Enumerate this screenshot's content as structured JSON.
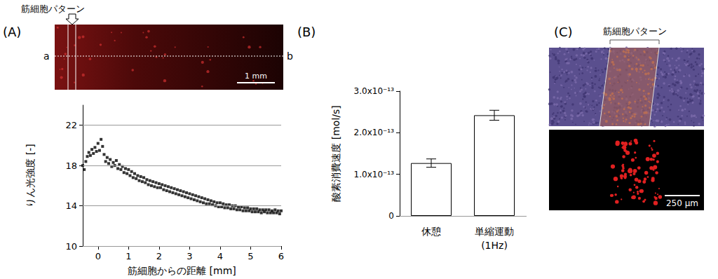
{
  "panel_labels": [
    "(A)",
    "(B)",
    "(C)"
  ],
  "panel_a_image": {
    "pattern_label": "筋細胞パターン",
    "line_start": "a",
    "line_end": "b",
    "scale_bar": "1 mm"
  },
  "panel_c_image": {
    "pattern_label": "筋細胞パターン",
    "scale_bar": "250 µm"
  },
  "chart_data": [
    {
      "type": "scatter",
      "x_label": "筋細胞からの距離 [mm]",
      "y_label": "りん光強度 [-]",
      "x": [
        -0.5,
        -0.45,
        -0.4,
        -0.35,
        -0.3,
        -0.25,
        -0.2,
        -0.15,
        -0.1,
        -0.05,
        0,
        0.05,
        0.1,
        0.15,
        0.2,
        0.25,
        0.3,
        0.35,
        0.4,
        0.45,
        0.5,
        0.55,
        0.6,
        0.65,
        0.7,
        0.75,
        0.8,
        0.85,
        0.9,
        0.95,
        1,
        1.05,
        1.1,
        1.15,
        1.2,
        1.25,
        1.3,
        1.35,
        1.4,
        1.45,
        1.5,
        1.55,
        1.6,
        1.65,
        1.7,
        1.75,
        1.8,
        1.85,
        1.9,
        1.95,
        2,
        2.05,
        2.1,
        2.15,
        2.2,
        2.25,
        2.3,
        2.35,
        2.4,
        2.45,
        2.5,
        2.55,
        2.6,
        2.65,
        2.7,
        2.75,
        2.8,
        2.85,
        2.9,
        2.95,
        3,
        3.05,
        3.1,
        3.15,
        3.2,
        3.25,
        3.3,
        3.35,
        3.4,
        3.45,
        3.5,
        3.55,
        3.6,
        3.65,
        3.7,
        3.75,
        3.8,
        3.85,
        3.9,
        3.95,
        4,
        4.05,
        4.1,
        4.15,
        4.2,
        4.25,
        4.3,
        4.35,
        4.4,
        4.45,
        4.5,
        4.55,
        4.6,
        4.65,
        4.7,
        4.75,
        4.8,
        4.85,
        4.9,
        4.95,
        5,
        5.05,
        5.1,
        5.15,
        5.2,
        5.25,
        5.3,
        5.35,
        5.4,
        5.45,
        5.5,
        5.55,
        5.6,
        5.65,
        5.7,
        5.75,
        5.8,
        5.85,
        5.9,
        5.95,
        6
      ],
      "values": [
        18.0,
        17.6,
        18.4,
        18.9,
        19.3,
        19.0,
        19.6,
        19.2,
        19.8,
        19.4,
        20.2,
        19.5,
        20.6,
        19.9,
        19.1,
        18.4,
        18.8,
        18.2,
        18.6,
        17.9,
        18.3,
        18.0,
        18.5,
        17.7,
        18.1,
        17.6,
        17.9,
        17.3,
        17.7,
        17.2,
        17.6,
        17.0,
        17.4,
        16.8,
        17.2,
        16.7,
        17.0,
        16.5,
        16.9,
        16.4,
        16.8,
        16.3,
        16.6,
        16.1,
        16.5,
        16.0,
        16.4,
        15.9,
        16.3,
        15.8,
        16.2,
        15.8,
        16.1,
        15.6,
        16.0,
        15.5,
        15.9,
        15.4,
        15.8,
        15.3,
        15.7,
        15.2,
        15.6,
        15.1,
        15.5,
        15.0,
        15.4,
        14.9,
        15.3,
        14.8,
        15.2,
        14.7,
        15.1,
        14.6,
        15.0,
        14.5,
        14.9,
        14.4,
        14.8,
        14.3,
        14.7,
        14.2,
        14.6,
        14.2,
        14.5,
        14.1,
        14.4,
        14.0,
        14.3,
        13.9,
        14.3,
        13.9,
        14.2,
        13.8,
        14.1,
        13.8,
        14.1,
        13.7,
        14.0,
        13.7,
        14.0,
        13.6,
        13.9,
        13.6,
        13.9,
        13.5,
        13.8,
        13.5,
        13.8,
        13.5,
        13.7,
        13.4,
        13.7,
        13.4,
        13.7,
        13.4,
        13.6,
        13.3,
        13.6,
        13.4,
        13.6,
        13.3,
        13.6,
        13.3,
        13.5,
        13.3,
        13.6,
        13.3,
        13.5,
        13.2,
        13.5
      ],
      "color": "#000000",
      "marker": "square",
      "xlim": [
        -0.5,
        6
      ],
      "xticks": [
        0,
        1,
        2,
        3,
        4,
        5,
        6
      ],
      "ylim": [
        10,
        24
      ],
      "yticks": [
        10,
        14,
        18,
        22
      ],
      "grid": true
    },
    {
      "type": "bar",
      "y_label": "酸素消費速度 [mol/s]",
      "categories": [
        "休憩",
        "単縮運動 (1Hz)"
      ],
      "values": [
        1.27e-13,
        2.42e-13
      ],
      "errors": [
        1e-14,
        1.2e-14
      ],
      "color": "#ffffff",
      "ylim": [
        0,
        3e-13
      ],
      "yticks": [
        0,
        {
          "value": 1e-13,
          "label": "1.0x10⁻¹³"
        },
        {
          "value": 2e-13,
          "label": "2.0x10⁻¹³"
        },
        {
          "value": 3e-13,
          "label": "3.0x10⁻¹³"
        }
      ],
      "grid": true
    }
  ]
}
